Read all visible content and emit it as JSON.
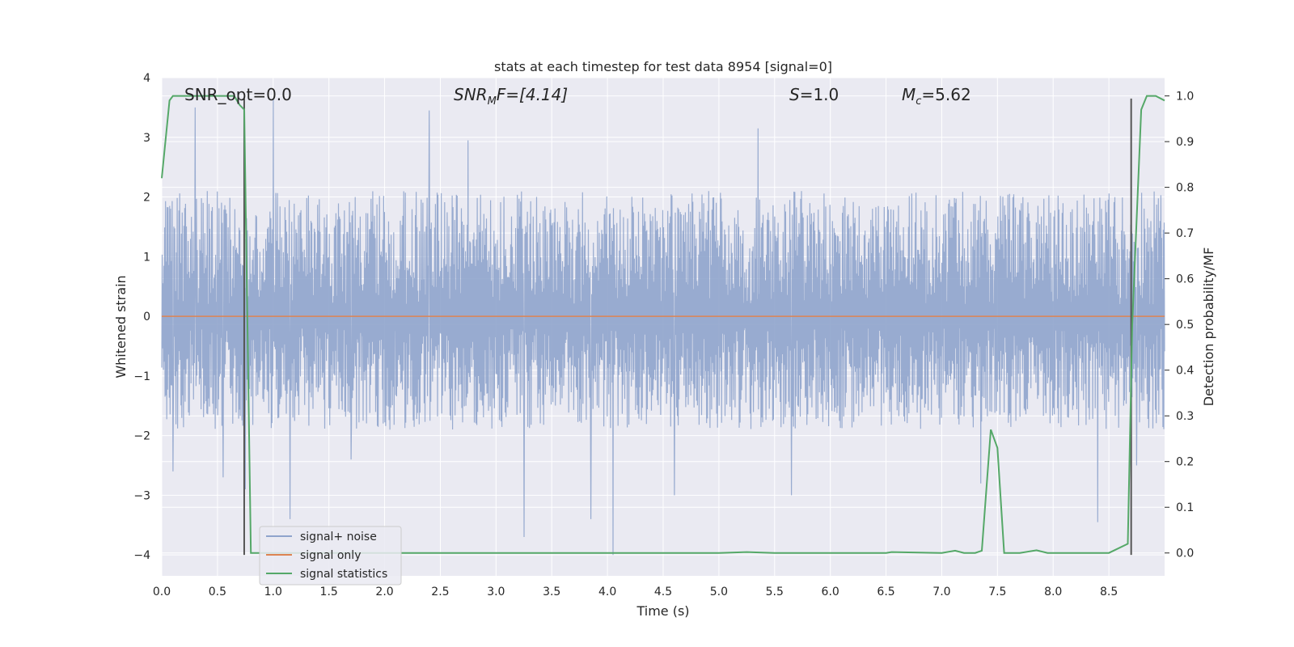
{
  "chart_data": {
    "type": "line",
    "title": "stats at each timestep for test data 8954 [signal=0]",
    "xlabel": "Time (s)",
    "ylabel": "Whitened strain",
    "y2label": "Detection probability/MF",
    "xlim": [
      0,
      9.0
    ],
    "ylim": [
      -4.35,
      4.0
    ],
    "y2lim": [
      -0.05,
      1.04
    ],
    "grid": true,
    "legend_position": "lower-left",
    "x_ticks": [
      "0.0",
      "0.5",
      "1.0",
      "1.5",
      "2.0",
      "2.5",
      "3.0",
      "3.5",
      "4.0",
      "4.5",
      "5.0",
      "5.5",
      "6.0",
      "6.5",
      "7.0",
      "7.5",
      "8.0",
      "8.5"
    ],
    "x_tick_values": [
      0,
      0.5,
      1,
      1.5,
      2,
      2.5,
      3,
      3.5,
      4,
      4.5,
      5,
      5.5,
      6,
      6.5,
      7,
      7.5,
      8,
      8.5
    ],
    "y_ticks": [
      "4",
      "3",
      "2",
      "1",
      "0",
      "−1",
      "−2",
      "−3",
      "−4"
    ],
    "y_tick_values": [
      4,
      3,
      2,
      1,
      0,
      -1,
      -2,
      -3,
      -4
    ],
    "y2_ticks": [
      "1.0",
      "0.9",
      "0.8",
      "0.7",
      "0.6",
      "0.5",
      "0.4",
      "0.3",
      "0.2",
      "0.1",
      "0.0"
    ],
    "y2_tick_values": [
      1.0,
      0.9,
      0.8,
      0.7,
      0.6,
      0.5,
      0.4,
      0.3,
      0.2,
      0.1,
      0.0
    ],
    "annotations": {
      "snr_opt": "SNR_opt=0.0",
      "snr_mf_base": "SNR",
      "snr_mf_sub": "M",
      "snr_mf_rest": "F=[4.14]",
      "s_label": "S",
      "s_value": "=1.0",
      "mc_label": "M",
      "mc_sub": "c",
      "mc_value": "=5.62"
    },
    "series": [
      {
        "name": "signal+ noise",
        "color": "#8fa4cc",
        "kind": "noise",
        "envelope_typical": [
          -1.9,
          2.1
        ],
        "peaks": [
          [
            0.1,
            -2.6
          ],
          [
            0.3,
            3.5
          ],
          [
            0.55,
            -2.7
          ],
          [
            0.75,
            -2.9
          ],
          [
            1.0,
            3.65
          ],
          [
            1.15,
            -3.4
          ],
          [
            1.7,
            -2.4
          ],
          [
            2.4,
            3.45
          ],
          [
            2.75,
            2.95
          ],
          [
            3.25,
            -3.7
          ],
          [
            3.85,
            -3.4
          ],
          [
            4.05,
            -4.0
          ],
          [
            4.6,
            -3.0
          ],
          [
            5.35,
            3.15
          ],
          [
            5.65,
            -3.0
          ],
          [
            7.35,
            -2.8
          ],
          [
            8.4,
            -3.45
          ],
          [
            8.75,
            -2.5
          ]
        ]
      },
      {
        "name": "signal only",
        "color": "#dd8452",
        "x": [
          0,
          9.0
        ],
        "y": [
          0,
          0
        ]
      },
      {
        "name": "signal statistics",
        "color": "#55a868",
        "axis": "right",
        "x": [
          0,
          0.07,
          0.1,
          0.2,
          0.3,
          0.4,
          0.5,
          0.6,
          0.65,
          0.7,
          0.74,
          0.8,
          1.0,
          2.0,
          3.0,
          4.0,
          5.0,
          5.25,
          5.5,
          6.0,
          6.5,
          6.55,
          7.0,
          7.12,
          7.2,
          7.3,
          7.36,
          7.44,
          7.5,
          7.56,
          7.7,
          7.85,
          7.95,
          8.2,
          8.5,
          8.67,
          8.71,
          8.79,
          8.84,
          8.92,
          9.0
        ],
        "y": [
          0.82,
          0.99,
          1.0,
          1.0,
          1.0,
          1.0,
          1.0,
          1.0,
          1.0,
          0.98,
          0.97,
          0.0,
          0.0,
          0.0,
          0.0,
          0.0,
          0.0,
          0.002,
          0.0,
          0.0,
          0.0,
          0.002,
          0.0,
          0.005,
          0.0,
          0.0,
          0.005,
          0.27,
          0.23,
          0.0,
          0.0,
          0.006,
          0.0,
          0.0,
          0.0,
          0.02,
          0.5,
          0.97,
          1.0,
          1.0,
          0.99
        ]
      }
    ],
    "vertical_lines": [
      {
        "x": 0.74,
        "y_range": [
          -4.0,
          3.65
        ],
        "color": "#555555"
      },
      {
        "x": 8.7,
        "y_range": [
          -4.0,
          3.65
        ],
        "color": "#555555"
      }
    ]
  }
}
